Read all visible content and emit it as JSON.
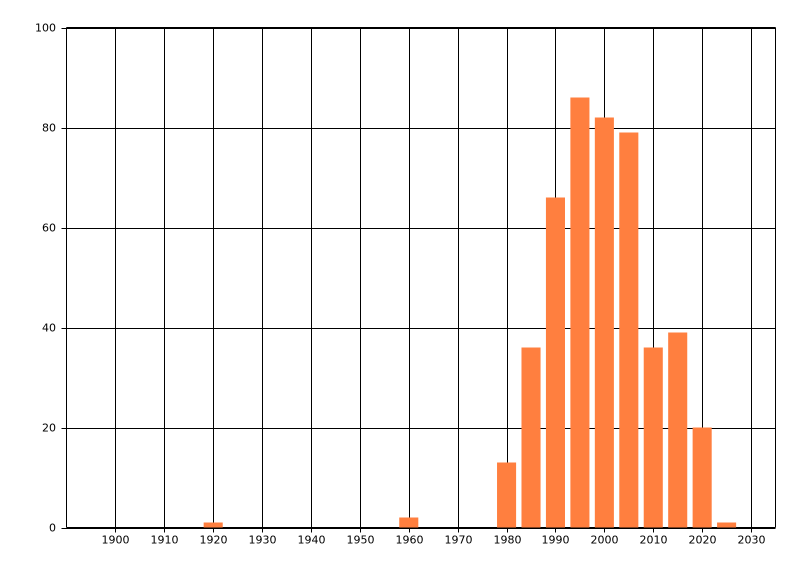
{
  "chart_data": {
    "type": "bar",
    "x": [
      1920,
      1960,
      1980,
      1985,
      1990,
      1995,
      2000,
      2005,
      2010,
      2015,
      2020,
      2025
    ],
    "values": [
      1,
      2,
      13,
      36,
      66,
      86,
      82,
      79,
      36,
      39,
      20,
      1
    ],
    "color": "#ff7f3f",
    "xlim": [
      1890,
      2035
    ],
    "xticks": [
      1900,
      1910,
      1920,
      1930,
      1940,
      1950,
      1960,
      1970,
      1980,
      1990,
      2000,
      2010,
      2020,
      2030
    ],
    "ylim": [
      0,
      100
    ],
    "yticks": [
      0,
      20,
      40,
      60,
      80,
      100
    ],
    "grid": true
  }
}
